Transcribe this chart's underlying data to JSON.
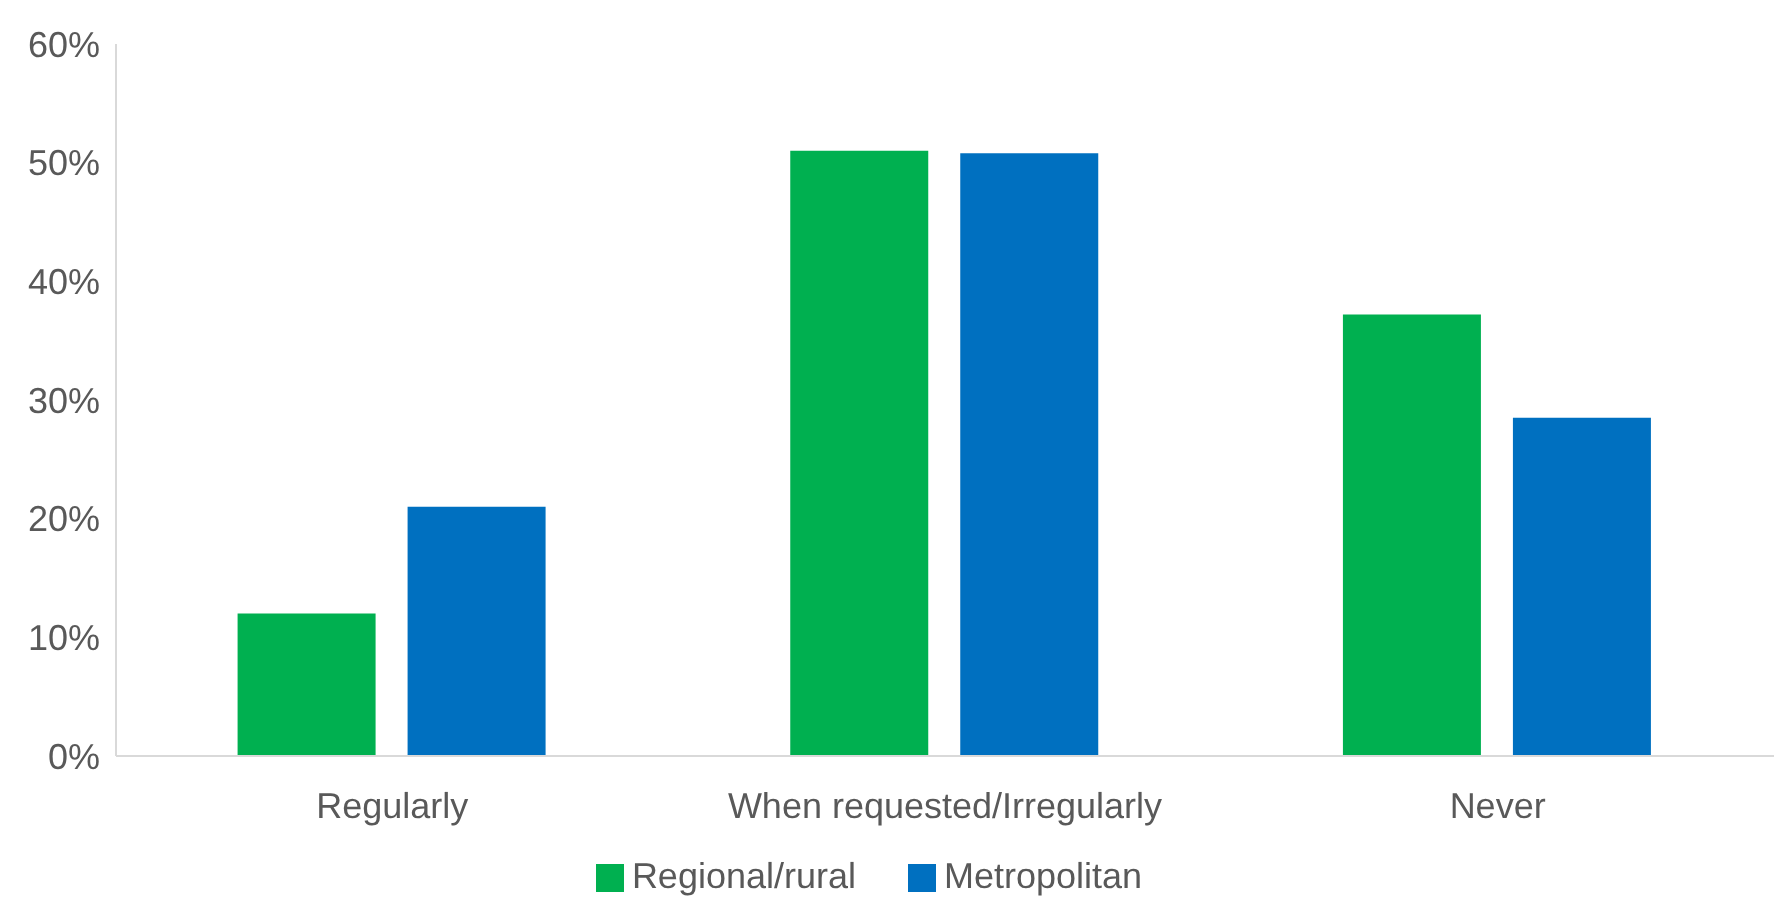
{
  "chart_data": {
    "type": "bar",
    "categories": [
      "Regularly",
      "When requested/Irregularly",
      "Never"
    ],
    "series": [
      {
        "name": "Regional/rural",
        "color": "#00b050",
        "values": [
          12,
          51,
          37.2
        ]
      },
      {
        "name": "Metropolitan",
        "color": "#0070c0",
        "values": [
          21,
          50.8,
          28.5
        ]
      }
    ],
    "ylim": [
      0,
      60
    ],
    "yticks": [
      {
        "value": 0,
        "label": "0%"
      },
      {
        "value": 10,
        "label": "10%"
      },
      {
        "value": 20,
        "label": "20%"
      },
      {
        "value": 30,
        "label": "30%"
      },
      {
        "value": 40,
        "label": "40%"
      },
      {
        "value": 50,
        "label": "50%"
      },
      {
        "value": 60,
        "label": "60%"
      }
    ],
    "grid": false,
    "legend": "bottom"
  }
}
